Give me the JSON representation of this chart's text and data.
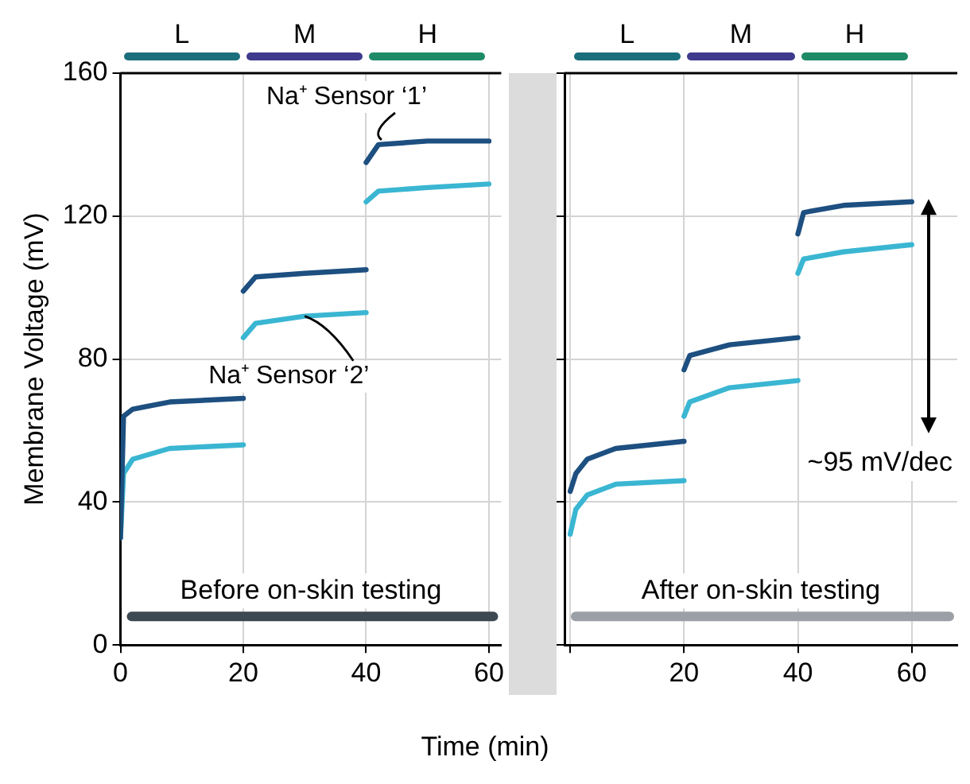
{
  "chart_data": [
    {
      "type": "line",
      "ylabel": "Membrane Voltage (mV)",
      "xlabel": "Time (min)",
      "xlim": [
        0,
        62
      ],
      "xticks": [
        0,
        20,
        40,
        60
      ],
      "ylim": [
        0,
        160
      ],
      "yticks": [
        0,
        40,
        80,
        120,
        160
      ],
      "grid": true,
      "legend": false,
      "marker": "none",
      "annotations": [
        "L",
        "M",
        "H"
      ],
      "ref_lines": [
        {
          "axis": "y",
          "value": 8,
          "label": "Before on-skin testing",
          "color": "#3c4852"
        }
      ],
      "series": [
        {
          "color": "#1d4f80",
          "x": [
            0,
            0.5,
            2,
            8,
            20
          ],
          "values": [
            30,
            64,
            66,
            68,
            69
          ]
        },
        {
          "color": "#1d4f80",
          "x": [
            20,
            22,
            30,
            40
          ],
          "values": [
            99,
            103,
            104,
            105
          ]
        },
        {
          "name": "Na⁺ Sensor ‘1’",
          "color": "#1d4f80",
          "x": [
            40,
            42,
            50,
            60
          ],
          "values": [
            135,
            140,
            141,
            141
          ]
        },
        {
          "color": "#3ab6d2",
          "x": [
            0,
            0.5,
            2,
            8,
            20
          ],
          "values": [
            30,
            48,
            52,
            55,
            56
          ]
        },
        {
          "name": "Na⁺ Sensor ‘2’",
          "color": "#3ab6d2",
          "x": [
            20,
            22,
            30,
            40
          ],
          "values": [
            86,
            90,
            92,
            93
          ]
        },
        {
          "color": "#3ab6d2",
          "x": [
            40,
            42,
            50,
            60
          ],
          "values": [
            124,
            127,
            128,
            129
          ]
        }
      ]
    },
    {
      "type": "line",
      "tick_labels": "x",
      "xlim": [
        -1,
        68
      ],
      "xticks": [
        {
          "value": 0,
          "label": null
        },
        20,
        40,
        60
      ],
      "ylim": [
        0,
        160
      ],
      "yticks": [
        0,
        40,
        80,
        120,
        160
      ],
      "grid": true,
      "legend": false,
      "marker": "none",
      "annotations": [
        "L",
        "M",
        "H",
        "~95 mV/dec"
      ],
      "ref_lines": [
        {
          "axis": "y",
          "value": 8,
          "label": "After on-skin testing",
          "color": "#9aa0a6"
        }
      ],
      "series": [
        {
          "color": "#1d4f80",
          "x": [
            0,
            1,
            3,
            8,
            20
          ],
          "values": [
            43,
            48,
            52,
            55,
            57
          ]
        },
        {
          "color": "#1d4f80",
          "x": [
            20,
            21,
            28,
            40
          ],
          "values": [
            77,
            81,
            84,
            86
          ]
        },
        {
          "color": "#1d4f80",
          "x": [
            40,
            41,
            48,
            60
          ],
          "values": [
            115,
            121,
            123,
            124
          ]
        },
        {
          "color": "#3ab6d2",
          "x": [
            0,
            1,
            3,
            8,
            20
          ],
          "values": [
            31,
            38,
            42,
            45,
            46
          ]
        },
        {
          "color": "#3ab6d2",
          "x": [
            20,
            21,
            28,
            40
          ],
          "values": [
            64,
            68,
            72,
            74
          ]
        },
        {
          "color": "#3ab6d2",
          "x": [
            40,
            41,
            48,
            60
          ],
          "values": [
            104,
            108,
            110,
            112
          ]
        }
      ]
    }
  ]
}
